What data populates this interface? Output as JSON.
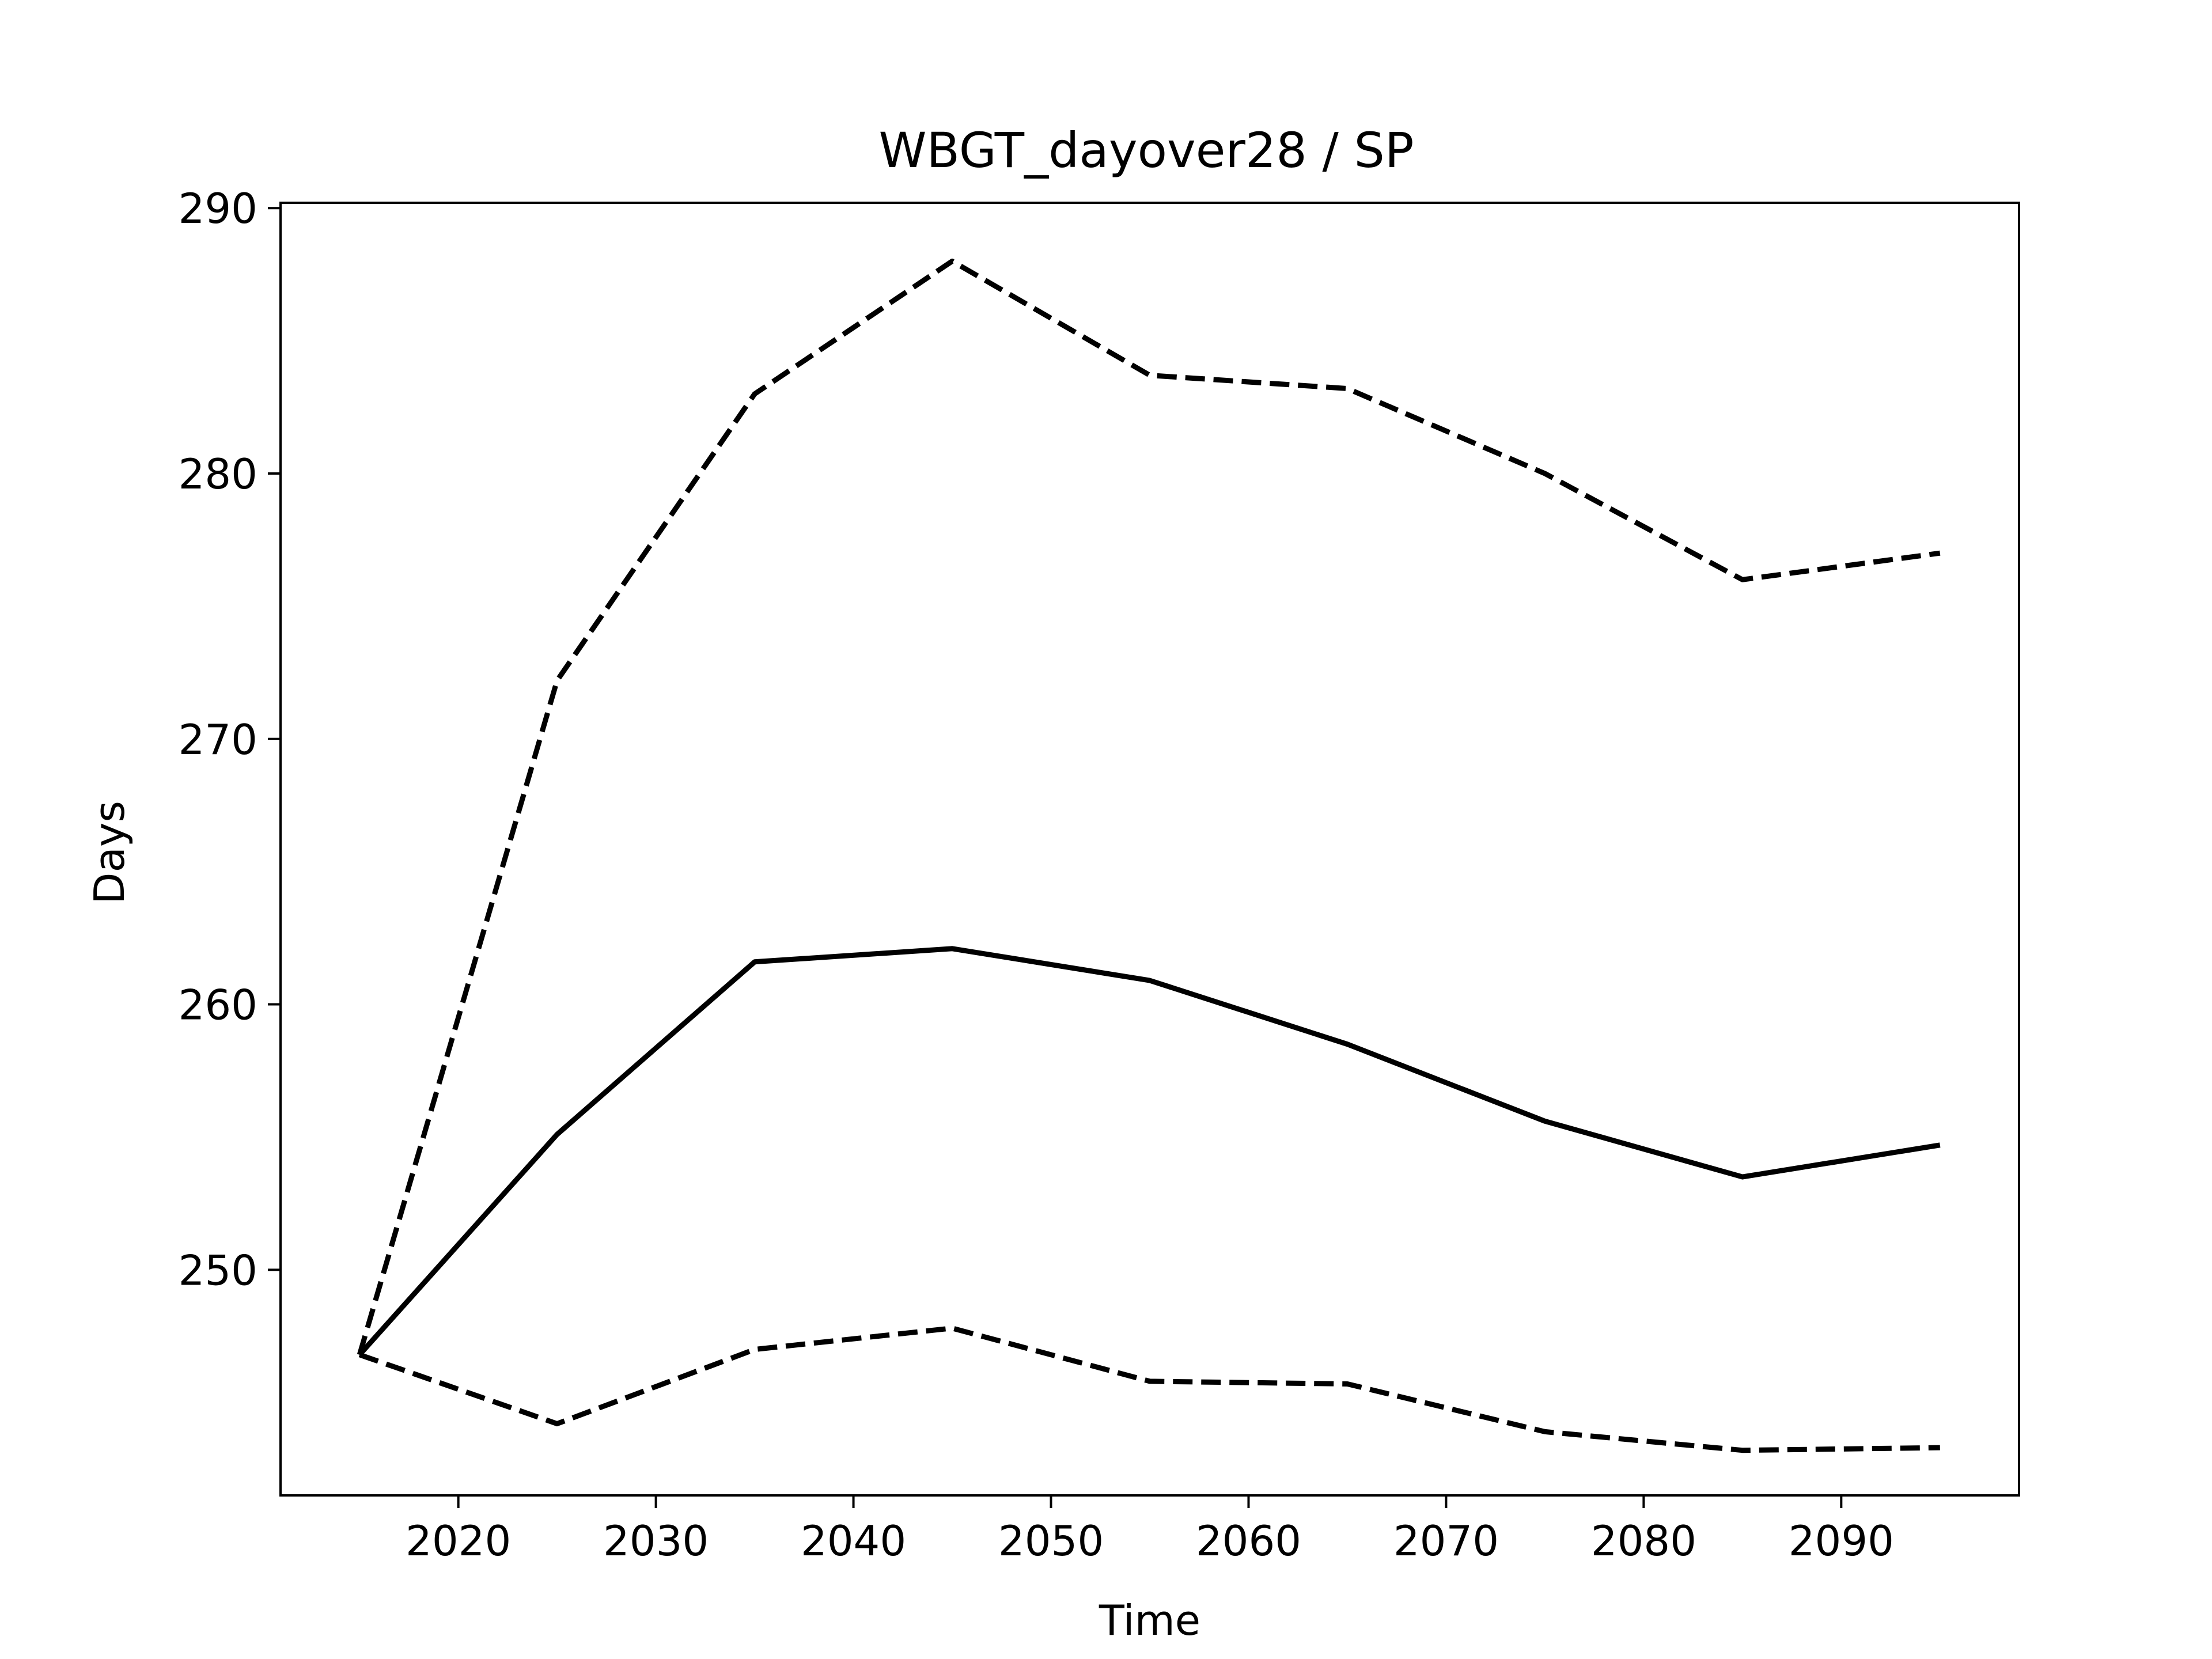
{
  "chart_data": {
    "type": "line",
    "title": "WBGT_dayover28 / SP",
    "xlabel": "Time",
    "ylabel": "Days",
    "xlim": [
      2011,
      2099
    ],
    "ylim": [
      241.5,
      290.2
    ],
    "xticks": [
      2020,
      2030,
      2040,
      2050,
      2060,
      2070,
      2080,
      2090
    ],
    "yticks": [
      250,
      260,
      270,
      280,
      290
    ],
    "grid": false,
    "legend": "none",
    "x": [
      2015,
      2025,
      2035,
      2045,
      2055,
      2065,
      2075,
      2085,
      2095
    ],
    "series": [
      {
        "style": "solid",
        "color": "#000000",
        "values": [
          246.8,
          255.1,
          261.6,
          262.1,
          260.9,
          258.5,
          255.6,
          253.5,
          254.7
        ]
      },
      {
        "style": "dashed",
        "color": "#000000",
        "values": [
          246.8,
          272.2,
          283.0,
          288.0,
          283.7,
          283.2,
          280.0,
          276.0,
          277.0
        ]
      },
      {
        "style": "dashed",
        "color": "#000000",
        "values": [
          246.8,
          244.2,
          247.0,
          247.8,
          245.8,
          245.7,
          243.9,
          243.2,
          243.3
        ]
      }
    ]
  }
}
